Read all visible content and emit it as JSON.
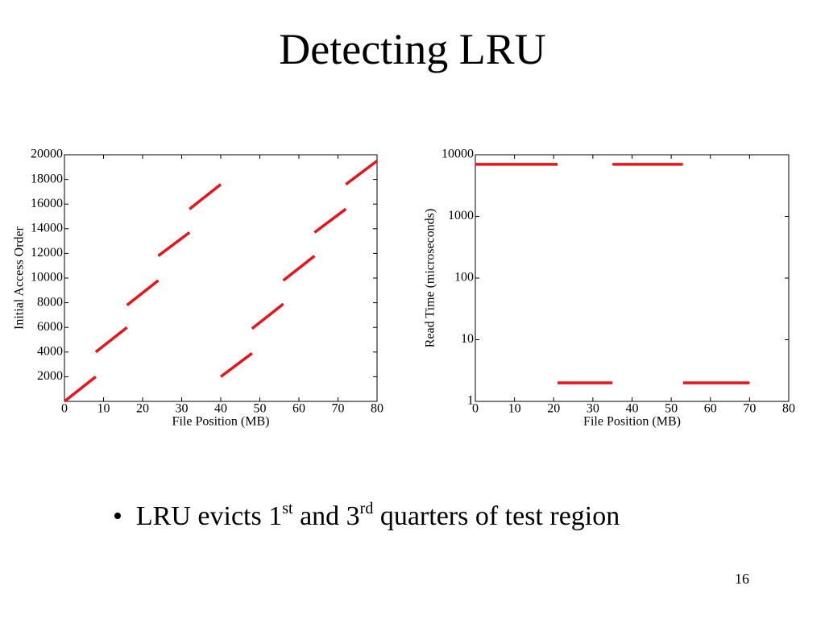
{
  "title": "Detecting LRU",
  "bullet": [
    "LRU evicts 1",
    "st",
    " and 3",
    "rd",
    " quarters of test region"
  ],
  "page_number": "16",
  "chart_data": [
    {
      "type": "line",
      "xlabel": "File Position (MB)",
      "ylabel": "Initial Access Order",
      "xlim": [
        0,
        80
      ],
      "xticks": [
        0,
        10,
        20,
        30,
        40,
        50,
        60,
        70,
        80
      ],
      "ylim": [
        0,
        20000
      ],
      "yticks": [
        2000,
        4000,
        6000,
        8000,
        10000,
        12000,
        14000,
        16000,
        18000,
        20000
      ],
      "log_y": false,
      "series": [
        {
          "color": "#e8141b",
          "x": [
            0,
            8,
            8,
            8,
            16,
            16,
            16,
            24,
            24,
            24,
            32,
            32,
            32,
            40,
            40,
            40,
            48,
            48,
            48,
            56,
            56,
            56,
            64,
            64,
            64,
            72,
            72,
            72,
            80
          ],
          "values": [
            0,
            2000,
            null,
            4000,
            6000,
            null,
            7800,
            9800,
            null,
            11800,
            13700,
            null,
            15600,
            17600,
            null,
            2000,
            3900,
            null,
            5900,
            7900,
            null,
            9800,
            11800,
            null,
            13700,
            15600,
            null,
            17600,
            19500
          ]
        }
      ]
    },
    {
      "type": "line",
      "xlabel": "File Position (MB)",
      "ylabel": "Read Time (microseconds)",
      "xlim": [
        0,
        80
      ],
      "xticks": [
        0,
        10,
        20,
        30,
        40,
        50,
        60,
        70,
        80
      ],
      "ylim": [
        1,
        10000
      ],
      "yticks": [
        1,
        10,
        100,
        1000,
        10000
      ],
      "log_y": true,
      "series": [
        {
          "color": "#e8141b",
          "x": [
            0,
            21,
            21,
            21,
            35,
            35,
            35,
            53,
            53,
            53,
            70
          ],
          "values": [
            7000,
            7000,
            null,
            2,
            2,
            null,
            7000,
            7000,
            null,
            2,
            2
          ]
        }
      ]
    }
  ]
}
